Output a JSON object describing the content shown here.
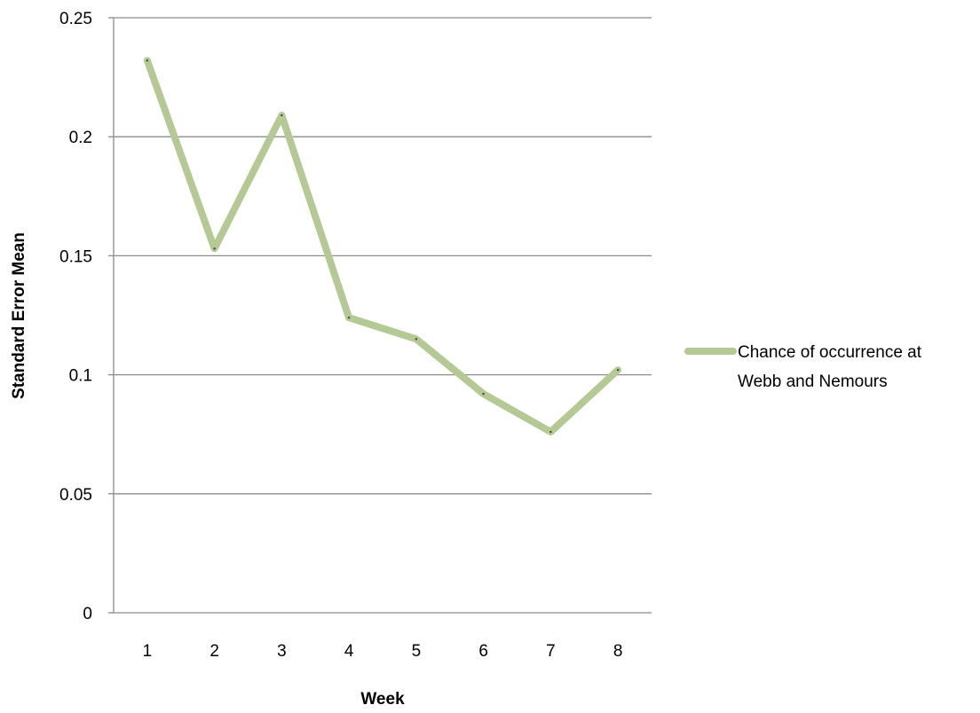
{
  "chart_data": {
    "type": "line",
    "title": "",
    "xlabel": "Week",
    "ylabel": "Standard Error Mean",
    "categories": [
      "1",
      "2",
      "3",
      "4",
      "5",
      "6",
      "7",
      "8"
    ],
    "series": [
      {
        "name": "Chance of occurrence at Webb and Nemours",
        "legend_lines": [
          "Chance of occurrence at",
          "Webb and Nemours"
        ],
        "color": "#b4c994",
        "values": [
          0.232,
          0.153,
          0.209,
          0.124,
          0.115,
          0.092,
          0.076,
          0.102
        ]
      }
    ],
    "ylim": [
      0,
      0.25
    ],
    "yticks": [
      "0",
      "0.05",
      "0.1",
      "0.15",
      "0.2",
      "0.25"
    ],
    "grid": true,
    "gridline_color": "#8c8c8c",
    "legend_position": "right"
  }
}
